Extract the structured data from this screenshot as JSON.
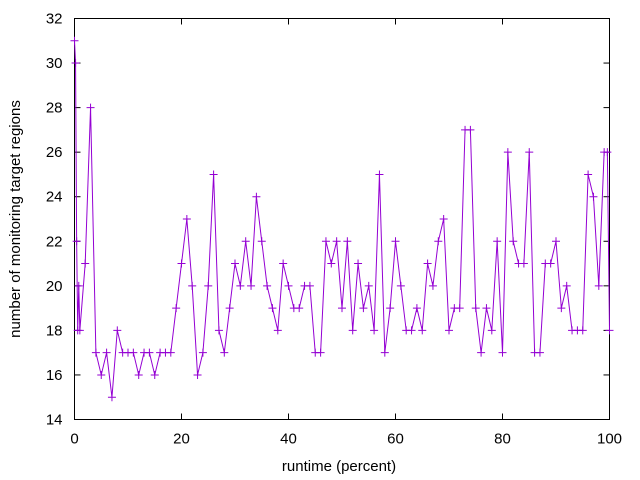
{
  "chart_data": {
    "type": "line",
    "title": "",
    "xlabel": "runtime (percent)",
    "ylabel": "number of monitoring target regions",
    "xlim": [
      0,
      100
    ],
    "ylim": [
      14,
      32
    ],
    "xticks": [
      0,
      20,
      40,
      60,
      80,
      100
    ],
    "yticks": [
      14,
      16,
      18,
      20,
      22,
      24,
      26,
      28,
      30,
      32
    ],
    "grid": false,
    "legend": "none",
    "marker": "plus",
    "line_color": "#9400d3",
    "series": [
      {
        "x": [
          0,
          0.2,
          0.4,
          0.6,
          0.8,
          1,
          2,
          3,
          4,
          5,
          6,
          7,
          8,
          9,
          10,
          11,
          12,
          13,
          14,
          15,
          16,
          17,
          18,
          19,
          20,
          21,
          22,
          23,
          24,
          25,
          26,
          27,
          28,
          29,
          30,
          31,
          32,
          33,
          34,
          35,
          36,
          37,
          38,
          39,
          40,
          41,
          42,
          43,
          44,
          45,
          46,
          47,
          48,
          49,
          50,
          51,
          52,
          53,
          54,
          55,
          56,
          57,
          58,
          59,
          60,
          61,
          62,
          63,
          64,
          65,
          66,
          67,
          68,
          69,
          70,
          71,
          72,
          73,
          74,
          75,
          76,
          77,
          78,
          79,
          80,
          81,
          82,
          83,
          84,
          85,
          86,
          87,
          88,
          89,
          90,
          91,
          92,
          93,
          94,
          95,
          96,
          97,
          98,
          99,
          99.6,
          100
        ],
        "values": [
          31,
          30,
          22,
          18,
          20,
          18,
          21,
          28,
          17,
          16,
          17,
          15,
          18,
          17,
          17,
          17,
          16,
          17,
          17,
          16,
          17,
          17,
          17,
          19,
          21,
          23,
          20,
          16,
          17,
          20,
          25,
          18,
          17,
          19,
          21,
          20,
          22,
          20,
          24,
          22,
          20,
          19,
          18,
          21,
          20,
          19,
          19,
          20,
          20,
          17,
          17,
          22,
          21,
          22,
          19,
          22,
          18,
          21,
          19,
          20,
          18,
          25,
          17,
          19,
          22,
          20,
          18,
          18,
          19,
          18,
          21,
          20,
          22,
          23,
          18,
          19,
          19,
          27,
          27,
          19,
          17,
          19,
          18,
          22,
          17,
          26,
          22,
          21,
          21,
          26,
          17,
          17,
          21,
          21,
          22,
          19,
          20,
          18,
          18,
          18,
          25,
          24,
          20,
          26,
          26,
          18
        ]
      }
    ]
  }
}
